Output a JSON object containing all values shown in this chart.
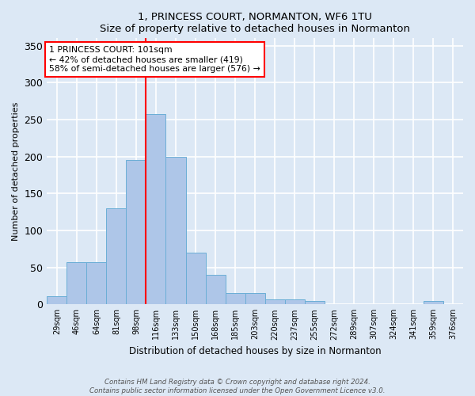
{
  "title": "1, PRINCESS COURT, NORMANTON, WF6 1TU",
  "subtitle": "Size of property relative to detached houses in Normanton",
  "xlabel": "Distribution of detached houses by size in Normanton",
  "ylabel": "Number of detached properties",
  "bins": [
    "29sqm",
    "46sqm",
    "64sqm",
    "81sqm",
    "98sqm",
    "116sqm",
    "133sqm",
    "150sqm",
    "168sqm",
    "185sqm",
    "203sqm",
    "220sqm",
    "237sqm",
    "255sqm",
    "272sqm",
    "289sqm",
    "307sqm",
    "324sqm",
    "341sqm",
    "359sqm",
    "376sqm"
  ],
  "values": [
    11,
    57,
    57,
    130,
    195,
    258,
    200,
    70,
    40,
    15,
    15,
    7,
    7,
    5,
    0,
    0,
    0,
    0,
    0,
    5,
    0
  ],
  "bar_color": "#aec6e8",
  "bar_edge_color": "#6baed6",
  "red_line_x": 4.5,
  "annotation_line1": "1 PRINCESS COURT: 101sqm",
  "annotation_line2": "← 42% of detached houses are smaller (419)",
  "annotation_line3": "58% of semi-detached houses are larger (576) →",
  "annotation_box_color": "white",
  "annotation_box_edge": "red",
  "ylim": [
    0,
    360
  ],
  "yticks": [
    0,
    50,
    100,
    150,
    200,
    250,
    300,
    350
  ],
  "footer1": "Contains HM Land Registry data © Crown copyright and database right 2024.",
  "footer2": "Contains public sector information licensed under the Open Government Licence v3.0.",
  "bg_color": "#dce8f5",
  "plot_bg_color": "#dce8f5",
  "grid_color": "white"
}
